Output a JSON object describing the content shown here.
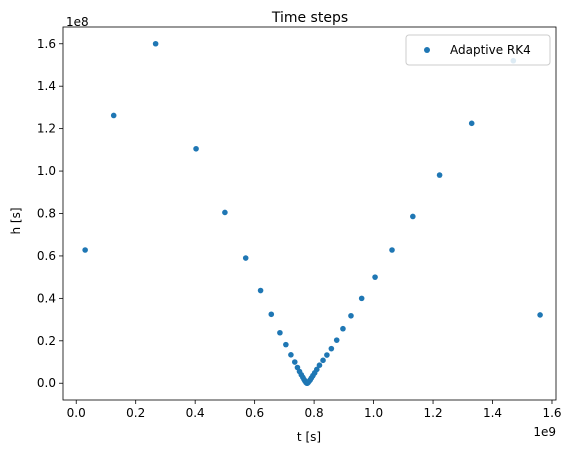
{
  "chart_data": {
    "type": "scatter",
    "title": "Time steps",
    "xlabel": "t [s]",
    "ylabel": "h [s]",
    "x_multiplier_label": "1e9",
    "y_multiplier_label": "1e8",
    "xlim": [
      -0.0445,
      1.6135
    ],
    "ylim": [
      -0.079,
      1.679
    ],
    "xticks": [
      0.0,
      0.2,
      0.4,
      0.6,
      0.8,
      1.0,
      1.2,
      1.4,
      1.6
    ],
    "xtick_labels": [
      "0.0",
      "0.2",
      "0.4",
      "0.6",
      "0.8",
      "1.0",
      "1.2",
      "1.4",
      "1.6"
    ],
    "yticks": [
      0.0,
      0.2,
      0.4,
      0.6,
      0.8,
      1.0,
      1.2,
      1.4,
      1.6
    ],
    "ytick_labels": [
      "0.0",
      "0.2",
      "0.4",
      "0.6",
      "0.8",
      "1.0",
      "1.2",
      "1.4",
      "1.6"
    ],
    "grid": false,
    "legend_position": "top-right",
    "series": [
      {
        "name": "Adaptive RK4",
        "color": "#1f77b4",
        "marker": "circle",
        "points": [
          [
            0.03,
            0.628
          ],
          [
            0.126,
            1.262
          ],
          [
            0.267,
            1.6
          ],
          [
            0.403,
            1.105
          ],
          [
            0.5,
            0.805
          ],
          [
            0.57,
            0.59
          ],
          [
            0.62,
            0.437
          ],
          [
            0.656,
            0.325
          ],
          [
            0.685,
            0.238
          ],
          [
            0.705,
            0.182
          ],
          [
            0.722,
            0.134
          ],
          [
            0.735,
            0.1
          ],
          [
            0.744,
            0.074
          ],
          [
            0.751,
            0.055
          ],
          [
            0.757,
            0.04
          ],
          [
            0.762,
            0.028
          ],
          [
            0.766,
            0.018
          ],
          [
            0.769,
            0.011
          ],
          [
            0.772,
            0.005
          ],
          [
            0.774,
            0.002
          ],
          [
            0.776,
            0.0
          ],
          [
            0.778,
            0.001
          ],
          [
            0.78,
            0.004
          ],
          [
            0.783,
            0.009
          ],
          [
            0.787,
            0.016
          ],
          [
            0.791,
            0.025
          ],
          [
            0.796,
            0.036
          ],
          [
            0.802,
            0.049
          ],
          [
            0.809,
            0.065
          ],
          [
            0.818,
            0.085
          ],
          [
            0.83,
            0.108
          ],
          [
            0.843,
            0.133
          ],
          [
            0.858,
            0.163
          ],
          [
            0.876,
            0.203
          ],
          [
            0.897,
            0.257
          ],
          [
            0.924,
            0.318
          ],
          [
            0.96,
            0.4
          ],
          [
            1.005,
            0.5
          ],
          [
            1.062,
            0.628
          ],
          [
            1.132,
            0.786
          ],
          [
            1.222,
            0.981
          ],
          [
            1.33,
            1.225
          ],
          [
            1.47,
            1.52
          ],
          [
            1.56,
            0.322
          ]
        ]
      }
    ]
  }
}
